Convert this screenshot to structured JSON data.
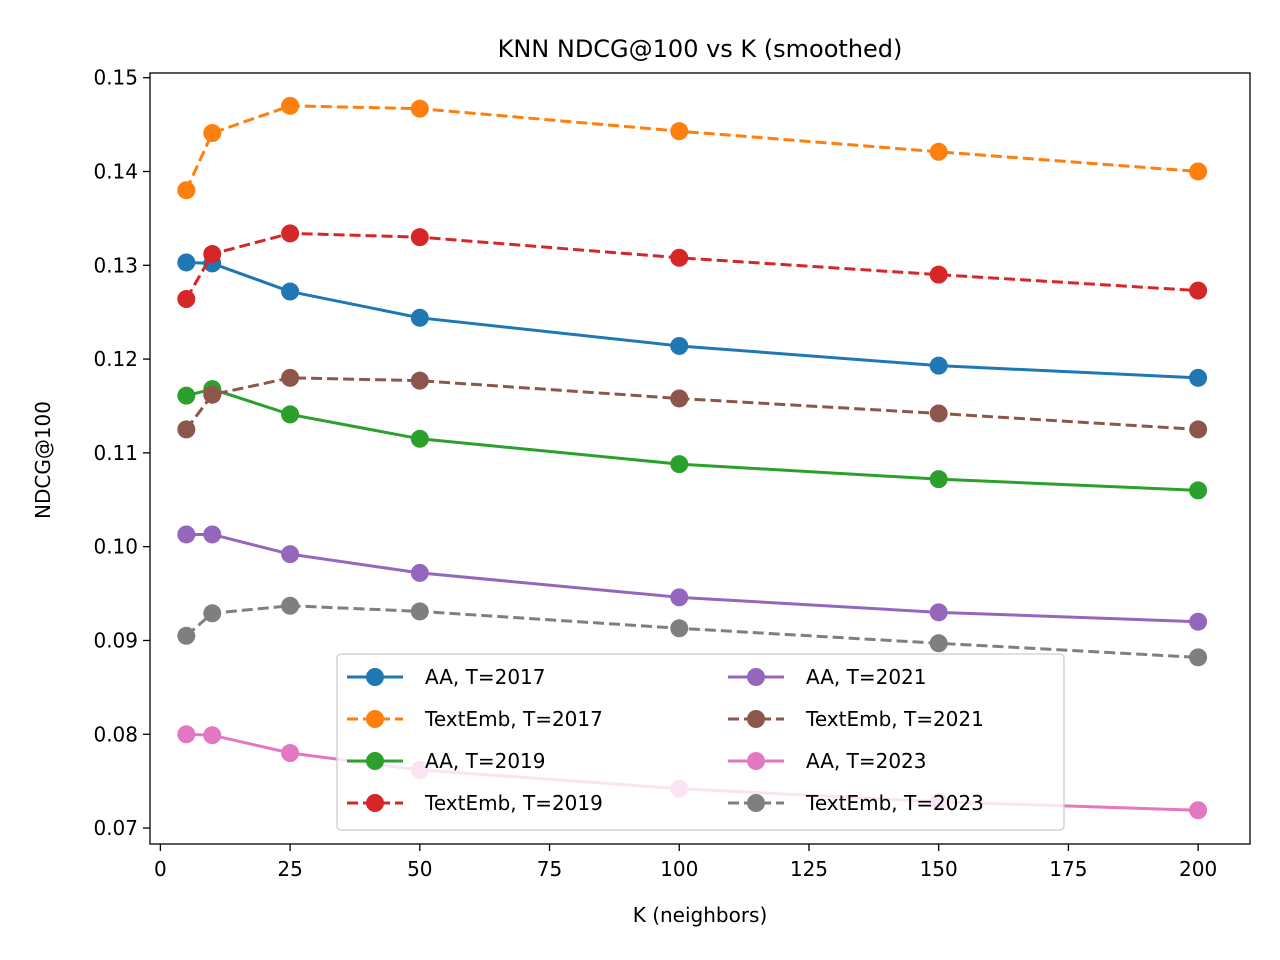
{
  "chart_data": {
    "type": "line",
    "title": "KNN NDCG@100 vs K (smoothed)",
    "xlabel": "K (neighbors)",
    "ylabel": "NDCG@100",
    "xlim": [
      -2,
      210
    ],
    "ylim": [
      0.0683,
      0.1505
    ],
    "x_ticks": [
      0,
      25,
      50,
      75,
      100,
      125,
      150,
      175,
      200
    ],
    "x_tick_labels": [
      "0",
      "25",
      "50",
      "75",
      "100",
      "125",
      "150",
      "175",
      "200"
    ],
    "y_ticks": [
      0.07,
      0.08,
      0.09,
      0.1,
      0.11,
      0.12,
      0.13,
      0.14,
      0.15
    ],
    "y_tick_labels": [
      "0.07",
      "0.08",
      "0.09",
      "0.10",
      "0.11",
      "0.12",
      "0.13",
      "0.14",
      "0.15"
    ],
    "grid": false,
    "legend_position": "lower-center",
    "x": [
      5,
      10,
      25,
      50,
      100,
      150,
      200
    ],
    "series": [
      {
        "name": "AA, T=2017",
        "color": "#1f77b4",
        "dash": "solid",
        "values": [
          0.1303,
          0.1302,
          0.1272,
          0.1244,
          0.1214,
          0.1193,
          0.118
        ]
      },
      {
        "name": "TextEmb, T=2017",
        "color": "#ff7f0e",
        "dash": "dashed",
        "values": [
          0.138,
          0.1441,
          0.147,
          0.1467,
          0.1443,
          0.1421,
          0.14
        ]
      },
      {
        "name": "AA, T=2019",
        "color": "#2ca02c",
        "dash": "solid",
        "values": [
          0.1161,
          0.1168,
          0.1141,
          0.1115,
          0.1088,
          0.1072,
          0.106
        ]
      },
      {
        "name": "TextEmb, T=2019",
        "color": "#d62728",
        "dash": "dashed",
        "values": [
          0.1264,
          0.1312,
          0.1334,
          0.133,
          0.1308,
          0.129,
          0.1273
        ]
      },
      {
        "name": "AA, T=2021",
        "color": "#9467bd",
        "dash": "solid",
        "values": [
          0.1013,
          0.1013,
          0.0992,
          0.0972,
          0.0946,
          0.093,
          0.092
        ]
      },
      {
        "name": "TextEmb, T=2021",
        "color": "#8c564b",
        "dash": "dashed",
        "values": [
          0.1125,
          0.1162,
          0.118,
          0.1177,
          0.1158,
          0.1142,
          0.1125
        ]
      },
      {
        "name": "AA, T=2023",
        "color": "#e377c2",
        "dash": "solid",
        "values": [
          0.08,
          0.0799,
          0.078,
          0.0762,
          0.0742,
          0.0728,
          0.0719
        ]
      },
      {
        "name": "TextEmb, T=2023",
        "color": "#7f7f7f",
        "dash": "dashed",
        "values": [
          0.0905,
          0.0929,
          0.0937,
          0.0931,
          0.0913,
          0.0897,
          0.0882
        ]
      }
    ]
  }
}
